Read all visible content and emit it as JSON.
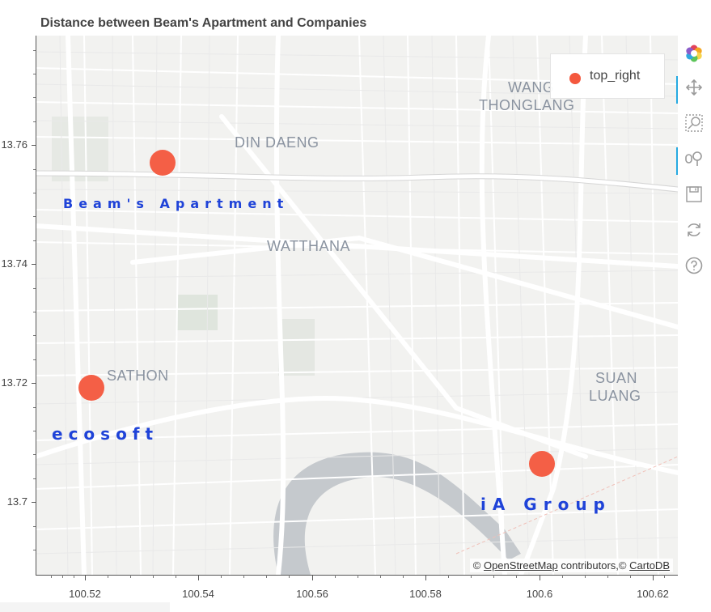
{
  "title": "Distance between Beam's Apartment and Companies",
  "legend": {
    "label": "top_right",
    "color": "#f4583e"
  },
  "map": {
    "districts": {
      "wang_thonglang_line1": "WANG",
      "wang_thonglang_line2": "THONGLANG",
      "din_daeng": "DIN DAENG",
      "watthana": "WATTHANA",
      "sathon": "SATHON",
      "suan_luang_line1": "SUAN",
      "suan_luang_line2": "LUANG"
    },
    "attribution": {
      "prefix": "©",
      "osm": "OpenStreetMap",
      "middle": "contributors,",
      "symbol2": "©",
      "carto": "CartoDB"
    }
  },
  "markers": [
    {
      "id": "beam",
      "label": "Beam's Apartment",
      "lon": 100.5335,
      "lat": 13.7572
    },
    {
      "id": "ecosoft",
      "label": "ecosoft",
      "lon": 100.5212,
      "lat": 13.719
    },
    {
      "id": "iagroup",
      "label": "iA Group",
      "lon": 100.5993,
      "lat": 13.7064
    }
  ],
  "axes": {
    "x_ticks": [
      "100.52",
      "100.54",
      "100.56",
      "100.58",
      "100.6",
      "100.62"
    ],
    "y_ticks": [
      "13.76",
      "13.74",
      "13.72",
      "13.7"
    ],
    "x_range": [
      100.5128,
      100.6215
    ],
    "y_range": [
      13.6868,
      13.7775
    ]
  },
  "toolbar": {
    "tools": [
      {
        "icon": "bokeh-logo-icon",
        "active": false
      },
      {
        "icon": "pan-icon",
        "active": true
      },
      {
        "icon": "box-zoom-icon",
        "active": false
      },
      {
        "icon": "wheel-zoom-icon",
        "active": true
      },
      {
        "icon": "save-icon",
        "active": false
      },
      {
        "icon": "reset-icon",
        "active": false
      },
      {
        "icon": "help-icon",
        "active": false
      }
    ]
  },
  "colors": {
    "marker": "#f4583e",
    "marker_label": "#1f43d8",
    "toolbar_active": "#26aae1",
    "district_text": "#8a93a0"
  }
}
